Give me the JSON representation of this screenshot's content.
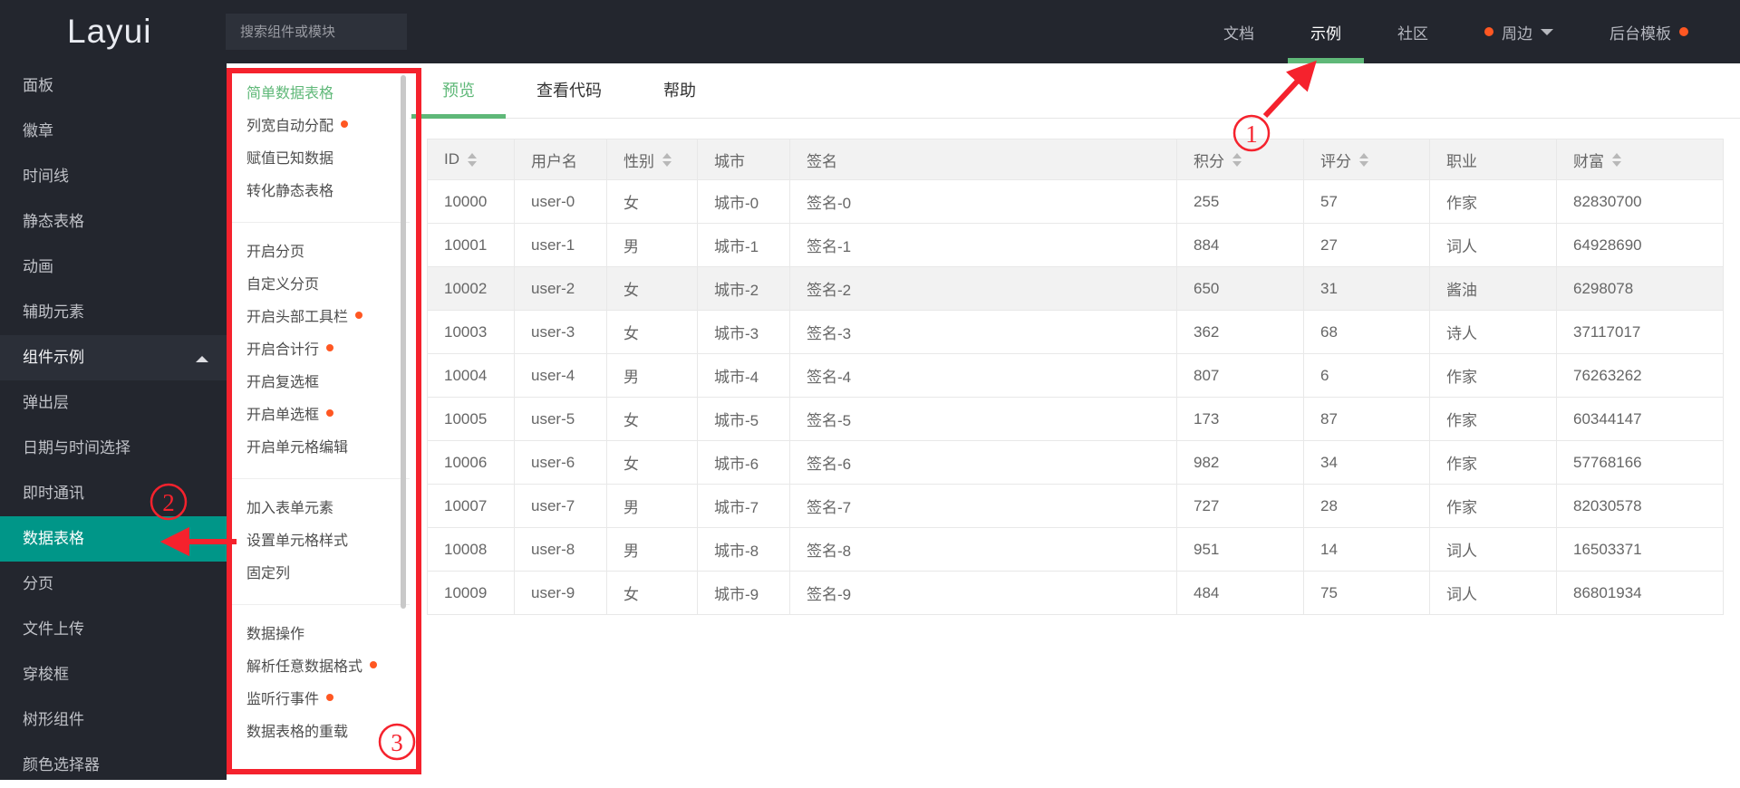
{
  "colors": {
    "accent_green": "#5FB878",
    "active_teal": "#009688",
    "dot_orange": "#FF5722",
    "annotation_red": "#F5222D",
    "dark_bg": "#23262E"
  },
  "header": {
    "logo": "Layui",
    "search_placeholder": "搜索组件或模块",
    "nav": [
      {
        "label": "文档"
      },
      {
        "label": "示例",
        "active": true
      },
      {
        "label": "社区"
      },
      {
        "label": "周边",
        "dot_before": true,
        "caret": true
      },
      {
        "label": "后台模板",
        "dot_after": true
      }
    ]
  },
  "sidebar": {
    "items": [
      {
        "label": "面板"
      },
      {
        "label": "徽章"
      },
      {
        "label": "时间线"
      },
      {
        "label": "静态表格"
      },
      {
        "label": "动画"
      },
      {
        "label": "辅助元素"
      },
      {
        "label": "组件示例",
        "group": true,
        "expanded": true
      },
      {
        "label": "弹出层"
      },
      {
        "label": "日期与时间选择"
      },
      {
        "label": "即时通讯"
      },
      {
        "label": "数据表格",
        "active": true
      },
      {
        "label": "分页"
      },
      {
        "label": "文件上传"
      },
      {
        "label": "穿梭框"
      },
      {
        "label": "树形组件"
      },
      {
        "label": "颜色选择器"
      }
    ]
  },
  "submenu": {
    "groups": [
      {
        "items": [
          {
            "label": "简单数据表格",
            "active": true
          },
          {
            "label": "列宽自动分配",
            "dot": true
          },
          {
            "label": "赋值已知数据"
          },
          {
            "label": "转化静态表格"
          }
        ]
      },
      {
        "items": [
          {
            "label": "开启分页"
          },
          {
            "label": "自定义分页"
          },
          {
            "label": "开启头部工具栏",
            "dot": true
          },
          {
            "label": "开启合计行",
            "dot": true
          },
          {
            "label": "开启复选框"
          },
          {
            "label": "开启单选框",
            "dot": true
          },
          {
            "label": "开启单元格编辑"
          }
        ]
      },
      {
        "items": [
          {
            "label": "加入表单元素"
          },
          {
            "label": "设置单元格样式"
          },
          {
            "label": "固定列"
          }
        ]
      },
      {
        "items": [
          {
            "label": "数据操作"
          },
          {
            "label": "解析任意数据格式",
            "dot": true
          },
          {
            "label": "监听行事件",
            "dot": true
          },
          {
            "label": "数据表格的重载"
          }
        ]
      }
    ]
  },
  "tabs": [
    {
      "label": "预览",
      "active": true
    },
    {
      "label": "查看代码"
    },
    {
      "label": "帮助"
    }
  ],
  "table": {
    "columns": [
      {
        "label": "ID",
        "sortable": true
      },
      {
        "label": "用户名"
      },
      {
        "label": "性别",
        "sortable": true
      },
      {
        "label": "城市"
      },
      {
        "label": "签名"
      },
      {
        "label": "积分",
        "sortable": true
      },
      {
        "label": "评分",
        "sortable": true
      },
      {
        "label": "职业"
      },
      {
        "label": "财富",
        "sortable": true
      }
    ],
    "rows": [
      [
        "10000",
        "user-0",
        "女",
        "城市-0",
        "签名-0",
        "255",
        "57",
        "作家",
        "82830700"
      ],
      [
        "10001",
        "user-1",
        "男",
        "城市-1",
        "签名-1",
        "884",
        "27",
        "词人",
        "64928690"
      ],
      [
        "10002",
        "user-2",
        "女",
        "城市-2",
        "签名-2",
        "650",
        "31",
        "酱油",
        "6298078"
      ],
      [
        "10003",
        "user-3",
        "女",
        "城市-3",
        "签名-3",
        "362",
        "68",
        "诗人",
        "37117017"
      ],
      [
        "10004",
        "user-4",
        "男",
        "城市-4",
        "签名-4",
        "807",
        "6",
        "作家",
        "76263262"
      ],
      [
        "10005",
        "user-5",
        "女",
        "城市-5",
        "签名-5",
        "173",
        "87",
        "作家",
        "60344147"
      ],
      [
        "10006",
        "user-6",
        "女",
        "城市-6",
        "签名-6",
        "982",
        "34",
        "作家",
        "57768166"
      ],
      [
        "10007",
        "user-7",
        "男",
        "城市-7",
        "签名-7",
        "727",
        "28",
        "作家",
        "82030578"
      ],
      [
        "10008",
        "user-8",
        "男",
        "城市-8",
        "签名-8",
        "951",
        "14",
        "词人",
        "16503371"
      ],
      [
        "10009",
        "user-9",
        "女",
        "城市-9",
        "签名-9",
        "484",
        "75",
        "词人",
        "86801934"
      ]
    ],
    "highlighted_row_index": 2
  },
  "annotations": {
    "step1": "1",
    "step2": "2",
    "step3": "3"
  }
}
